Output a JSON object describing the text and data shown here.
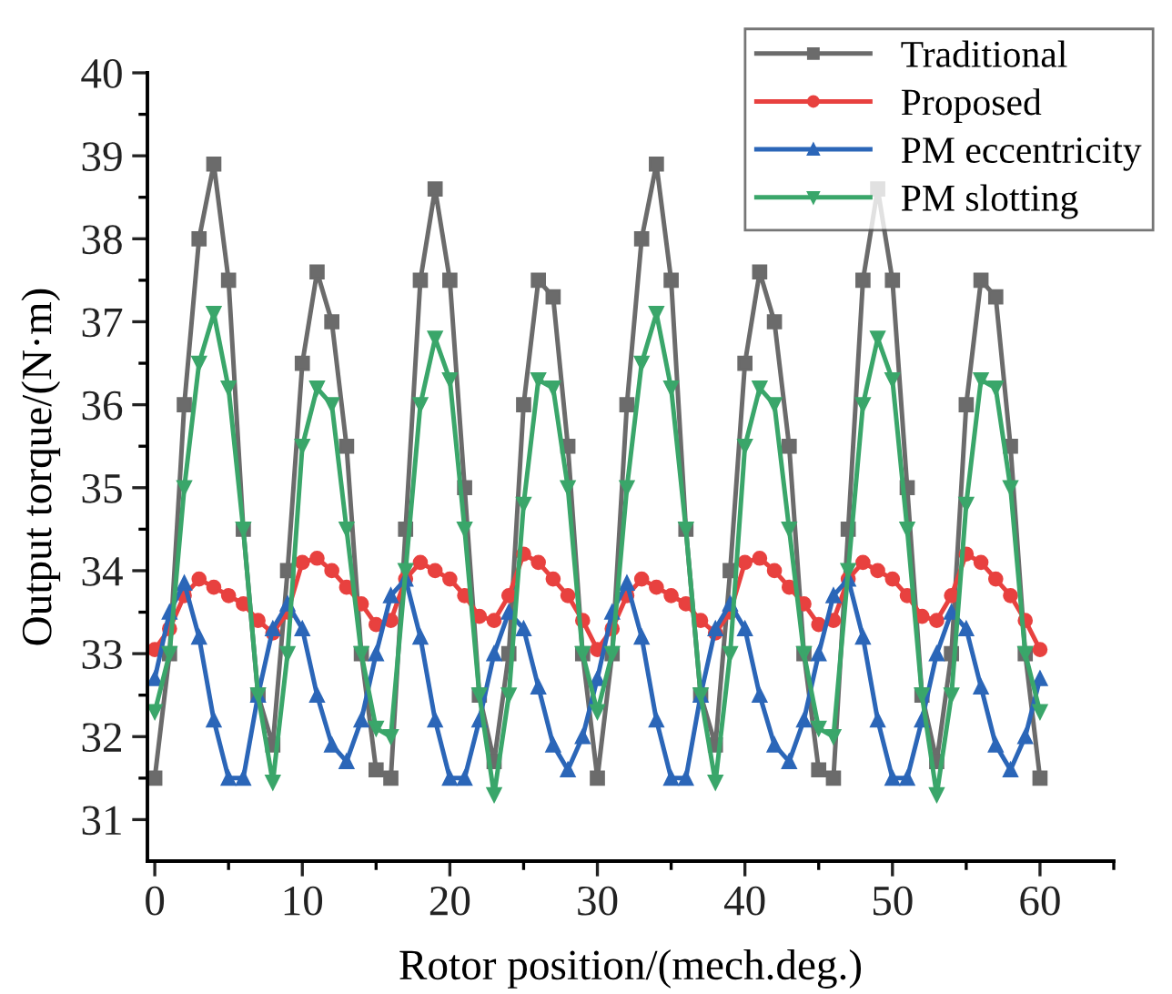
{
  "chart_data": {
    "type": "line",
    "xlabel": "Rotor position/(mech.deg.)",
    "ylabel": "Output torque/(N·m)",
    "x": [
      0,
      1,
      2,
      3,
      4,
      5,
      6,
      7,
      8,
      9,
      10,
      11,
      12,
      13,
      14,
      15,
      16,
      17,
      18,
      19,
      20,
      21,
      22,
      23,
      24,
      25,
      26,
      27,
      28,
      29,
      30,
      31,
      32,
      33,
      34,
      35,
      36,
      37,
      38,
      39,
      40,
      41,
      42,
      43,
      44,
      45,
      46,
      47,
      48,
      49,
      50,
      51,
      52,
      53,
      54,
      55,
      56,
      57,
      58,
      59,
      60
    ],
    "series": [
      {
        "name": "Traditional",
        "color": "#6b6b6b",
        "marker": "square",
        "values": [
          31.5,
          33.0,
          36.0,
          38.0,
          38.9,
          37.5,
          34.5,
          32.5,
          31.9,
          34.0,
          36.5,
          37.6,
          37.0,
          35.5,
          33.0,
          31.6,
          31.5,
          34.5,
          37.5,
          38.6,
          37.5,
          35.0,
          32.5,
          31.7,
          33.0,
          36.0,
          37.5,
          37.3,
          35.5,
          33.0,
          31.5,
          33.0,
          36.0,
          38.0,
          38.9,
          37.5,
          34.5,
          32.5,
          31.9,
          34.0,
          36.5,
          37.6,
          37.0,
          35.5,
          33.0,
          31.6,
          31.5,
          34.5,
          37.5,
          38.6,
          37.5,
          35.0,
          32.5,
          31.7,
          33.0,
          36.0,
          37.5,
          37.3,
          35.5,
          33.0,
          31.5
        ]
      },
      {
        "name": "Proposed",
        "color": "#e8413f",
        "marker": "circle",
        "values": [
          33.05,
          33.3,
          33.7,
          33.9,
          33.8,
          33.7,
          33.6,
          33.4,
          33.25,
          33.5,
          34.1,
          34.15,
          34.0,
          33.8,
          33.6,
          33.35,
          33.4,
          33.9,
          34.1,
          34.0,
          33.9,
          33.7,
          33.45,
          33.4,
          33.7,
          34.2,
          34.1,
          33.9,
          33.7,
          33.4,
          33.05,
          33.3,
          33.7,
          33.9,
          33.8,
          33.7,
          33.6,
          33.4,
          33.25,
          33.5,
          34.1,
          34.15,
          34.0,
          33.8,
          33.6,
          33.35,
          33.4,
          33.9,
          34.1,
          34.0,
          33.9,
          33.7,
          33.45,
          33.4,
          33.7,
          34.2,
          34.1,
          33.9,
          33.7,
          33.4,
          33.05
        ]
      },
      {
        "name": "PM eccentricity",
        "color": "#2b66b8",
        "marker": "triangle",
        "values": [
          32.7,
          33.5,
          33.85,
          33.2,
          32.2,
          31.5,
          31.5,
          32.5,
          33.3,
          33.6,
          33.3,
          32.5,
          31.9,
          31.7,
          32.2,
          33.0,
          33.7,
          33.9,
          33.2,
          32.2,
          31.5,
          31.5,
          32.2,
          33.0,
          33.5,
          33.3,
          32.6,
          31.9,
          31.6,
          32.0,
          32.7,
          33.5,
          33.85,
          33.2,
          32.2,
          31.5,
          31.5,
          32.5,
          33.3,
          33.6,
          33.3,
          32.5,
          31.9,
          31.7,
          32.2,
          33.0,
          33.7,
          33.9,
          33.2,
          32.2,
          31.5,
          31.5,
          32.2,
          33.0,
          33.5,
          33.3,
          32.6,
          31.9,
          31.6,
          32.0,
          32.7
        ]
      },
      {
        "name": "PM slotting",
        "color": "#3aa66a",
        "marker": "triangle_down",
        "values": [
          32.3,
          33.0,
          35.0,
          36.5,
          37.1,
          36.2,
          34.5,
          32.5,
          31.45,
          33.0,
          35.5,
          36.2,
          36.0,
          34.5,
          33.0,
          32.1,
          32.0,
          34.0,
          36.0,
          36.8,
          36.3,
          34.5,
          32.5,
          31.3,
          32.5,
          34.8,
          36.3,
          36.2,
          35.0,
          33.0,
          32.3,
          33.0,
          35.0,
          36.5,
          37.1,
          36.2,
          34.5,
          32.5,
          31.45,
          33.0,
          35.5,
          36.2,
          36.0,
          34.5,
          33.0,
          32.1,
          32.0,
          34.0,
          36.0,
          36.8,
          36.3,
          34.5,
          32.5,
          31.3,
          32.5,
          34.8,
          36.3,
          36.2,
          35.0,
          33.0,
          32.3
        ]
      }
    ],
    "xlim": [
      -0.5,
      65
    ],
    "xticks": [
      0,
      {
        "value": 5,
        "label": null
      },
      10,
      {
        "value": 15,
        "label": null
      },
      20,
      {
        "value": 25,
        "label": null
      },
      30,
      {
        "value": 35,
        "label": null
      },
      40,
      {
        "value": 45,
        "label": null
      },
      50,
      {
        "value": 55,
        "label": null
      },
      60,
      {
        "value": 65,
        "label": null
      }
    ],
    "ylim": [
      30.5,
      40
    ],
    "yticks": [
      31,
      {
        "value": 31.5,
        "label": null
      },
      32,
      {
        "value": 32.5,
        "label": null
      },
      33,
      {
        "value": 33.5,
        "label": null
      },
      34,
      {
        "value": 34.5,
        "label": null
      },
      35,
      {
        "value": 35.5,
        "label": null
      },
      36,
      {
        "value": 36.5,
        "label": null
      },
      37,
      {
        "value": 37.5,
        "label": null
      },
      38,
      {
        "value": 38.5,
        "label": null
      },
      39,
      {
        "value": 39.5,
        "label": null
      },
      40
    ],
    "grid": false,
    "legend": "top right",
    "line_style": "solid"
  }
}
